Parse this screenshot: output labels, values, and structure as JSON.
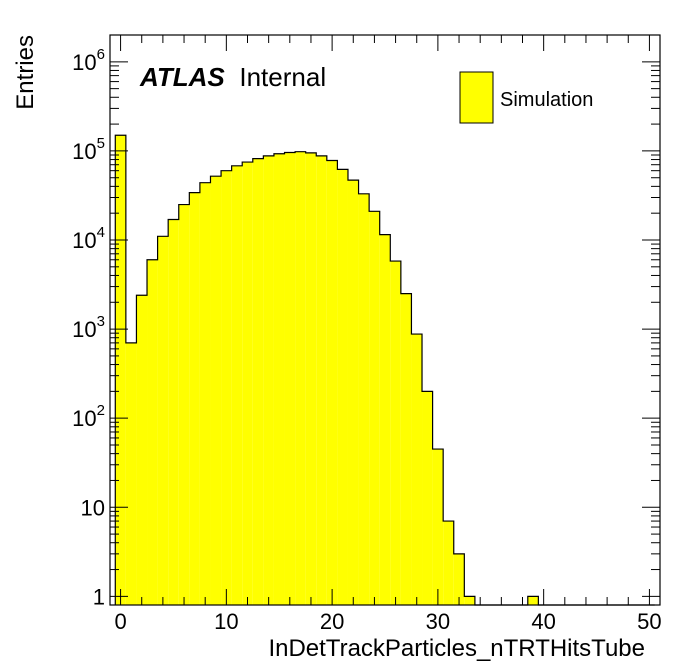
{
  "chart_data": {
    "type": "bar",
    "subtype": "histogram",
    "xlabel": "InDetTrackParticles_nTRTHitsTube",
    "ylabel": "Entries",
    "xlim": [
      -1,
      51
    ],
    "ylim": [
      0.8,
      2000000
    ],
    "yscale": "log",
    "x_ticks": [
      "0",
      "10",
      "20",
      "30",
      "40",
      "50"
    ],
    "y_ticks": [
      {
        "base": "1",
        "exp": ""
      },
      {
        "base": "10",
        "exp": ""
      },
      {
        "base": "10",
        "exp": "2"
      },
      {
        "base": "10",
        "exp": "3"
      },
      {
        "base": "10",
        "exp": "4"
      },
      {
        "base": "10",
        "exp": "5"
      },
      {
        "base": "10",
        "exp": "6"
      }
    ],
    "atlas_label": "ATLAS",
    "atlas_sublabel": "Internal",
    "legend": {
      "position": "top-right",
      "entries": [
        "Simulation"
      ]
    },
    "fill_color": "#ffff00",
    "line_color": "#000000",
    "series": [
      {
        "name": "Simulation",
        "bin_edges_start": -0.5,
        "bin_width": 1,
        "values": [
          150000,
          700,
          2400,
          6000,
          11000,
          17000,
          25000,
          34000,
          44000,
          52000,
          60000,
          68000,
          75000,
          82000,
          88000,
          93000,
          96000,
          98000,
          95000,
          88000,
          78000,
          62000,
          47000,
          33000,
          21000,
          11500,
          5800,
          2500,
          880,
          200,
          45,
          7,
          3,
          1,
          0,
          0,
          0,
          0,
          0,
          1,
          0,
          0,
          0,
          0,
          0,
          0,
          0,
          0,
          0,
          0,
          0
        ]
      }
    ]
  }
}
